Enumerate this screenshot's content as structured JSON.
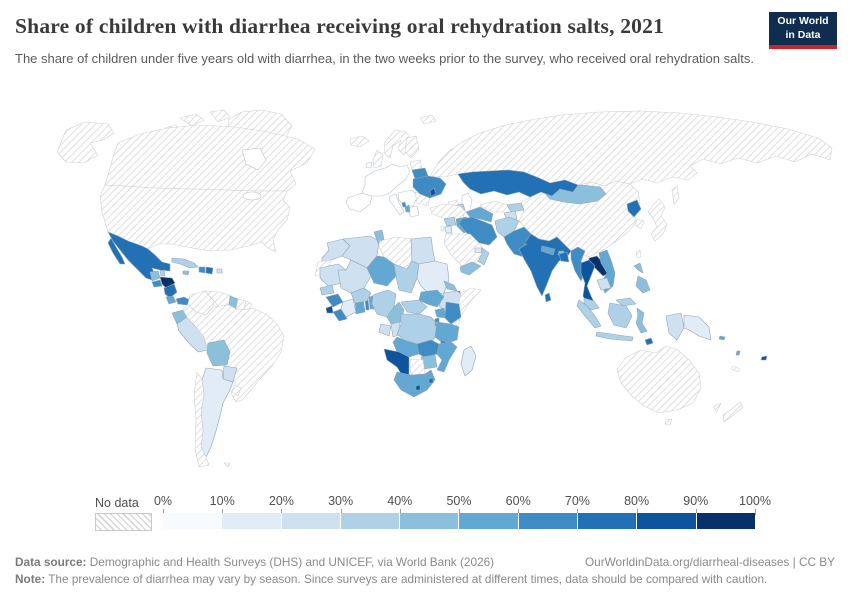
{
  "header": {
    "title": "Share of children with diarrhea receiving oral rehydration salts, 2021",
    "subtitle": "The share of children under five years old with diarrhea, in the two weeks prior to the survey, who received oral rehydration salts.",
    "logo": {
      "line1": "Our World",
      "line2": "in Data",
      "bg_color": "#102d50",
      "accent_color": "#c7252b"
    }
  },
  "legend": {
    "no_data_label": "No data",
    "tick_labels": [
      "0%",
      "10%",
      "20%",
      "30%",
      "40%",
      "50%",
      "60%",
      "70%",
      "80%",
      "90%",
      "100%"
    ],
    "bin_colors": [
      "#f7fbff",
      "#e2ecf7",
      "#cfe0f1",
      "#afd1e7",
      "#8bbfdc",
      "#62a8d2",
      "#3e8cc3",
      "#2271b5",
      "#0d539e",
      "#08306b"
    ]
  },
  "chart_data": {
    "type": "choropleth",
    "title": "Share of children with diarrhea receiving oral rehydration salts, 2021",
    "unit": "% of children under five with diarrhea receiving ORS",
    "bin_edges_percent": [
      0,
      10,
      20,
      30,
      40,
      50,
      60,
      70,
      80,
      90,
      100
    ],
    "no_data_value": -1,
    "countries": {
      "usa": -1,
      "canada": -1,
      "greenland": -1,
      "arctic-islands": -1,
      "mexico": 7,
      "belize": 3,
      "guatemala": 4,
      "el-salvador": 6,
      "honduras": 9,
      "nicaragua": 7,
      "costa-rica": 5,
      "panama": 6,
      "cuba": 3,
      "jamaica": 4,
      "haiti": 6,
      "dominican-republic": 7,
      "puerto-rico": 2,
      "colombia": -1,
      "venezuela": -1,
      "guyana": 4,
      "suriname": -1,
      "french-guiana": -1,
      "ecuador": 4,
      "peru": 2,
      "brazil": -1,
      "bolivia": 4,
      "paraguay": 2,
      "argentina": 1,
      "chile": -1,
      "uruguay": -1,
      "falkland-islands": -1,
      "iceland": -1,
      "united-kingdom": -1,
      "norway-sweden": -1,
      "finland": -1,
      "baltics": -1,
      "svalbard": -1,
      "romania-bulgaria": -1,
      "belarus": 6,
      "ukraine": 6,
      "moldova": 8,
      "albania": 5,
      "montenegro": 6,
      "russia": -1,
      "sakhalin": -1,
      "georgia": -1,
      "armenia": 4,
      "azerbaijan": 3,
      "turkey": -1,
      "syria": 3,
      "israel": -1,
      "jordan": 1,
      "iraq": 5,
      "iran": 6,
      "saudi-arabia": -1,
      "yemen": 4,
      "oman": 3,
      "uae": 1,
      "kazakhstan": 7,
      "turkmenistan": 5,
      "uzbekistan": -1,
      "kyrgyzstan": 3,
      "tajikistan": 2,
      "afghanistan": 3,
      "pakistan": 6,
      "india": 7,
      "nepal": 5,
      "bhutan": 4,
      "bangladesh": 7,
      "sri-lanka": 7,
      "china": -1,
      "mongolia": 4,
      "north-korea": 7,
      "south-korea": -1,
      "japan": -1,
      "taiwan": -1,
      "myanmar": 6,
      "thailand": 8,
      "laos": 9,
      "vietnam": 5,
      "cambodia": 2,
      "malaysia": 3,
      "indonesia": 3,
      "indonesia-sulawesi": 4,
      "indonesia-papua": 2,
      "philippines": 4,
      "timor-leste": 7,
      "papua-new-guinea": 1,
      "morocco": 2,
      "western-sahara": -1,
      "algeria": 2,
      "tunisia": 4,
      "libya": -1,
      "egypt": 2,
      "mauritania": 2,
      "mali": 2,
      "niger": 5,
      "chad": 3,
      "sudan": 1,
      "eritrea": 4,
      "djibouti": 8,
      "ethiopia": 2,
      "somalia": -1,
      "senegal": 3,
      "guinea": 6,
      "sierra-leone": 8,
      "liberia": 6,
      "cote-divoire": 1,
      "ghana": 5,
      "togo": 6,
      "benin": 5,
      "burkina-faso": 3,
      "nigeria": 3,
      "cameroon": 4,
      "central-african-republic": 3,
      "south-sudan": 5,
      "gabon": 2,
      "congo": 2,
      "dr-congo": 3,
      "uganda": 5,
      "kenya": 6,
      "rwanda": 6,
      "burundi": 5,
      "tanzania": 5,
      "angola": 5,
      "zambia": 6,
      "malawi": 6,
      "mozambique": 5,
      "zimbabwe": 4,
      "botswana": -1,
      "namibia": 8,
      "south-africa": 5,
      "lesotho": 8,
      "eswatini": 7,
      "madagascar": 1,
      "australia": -1,
      "tasmania": -1,
      "new-zealand": -1,
      "new-caledonia": -1,
      "fiji": 8,
      "solomon-islands": 5,
      "vanuatu": 5
    }
  },
  "footer": {
    "source_label": "Data source:",
    "source_text": " Demographic and Health Surveys (DHS) and UNICEF, via World Bank (2026)",
    "link_text": "OurWorldinData.org/diarrheal-diseases | CC BY",
    "note_label": "Note:",
    "note_text": " The prevalence of diarrhea may vary by season. Since surveys are administered at different times, data should be compared with caution."
  }
}
